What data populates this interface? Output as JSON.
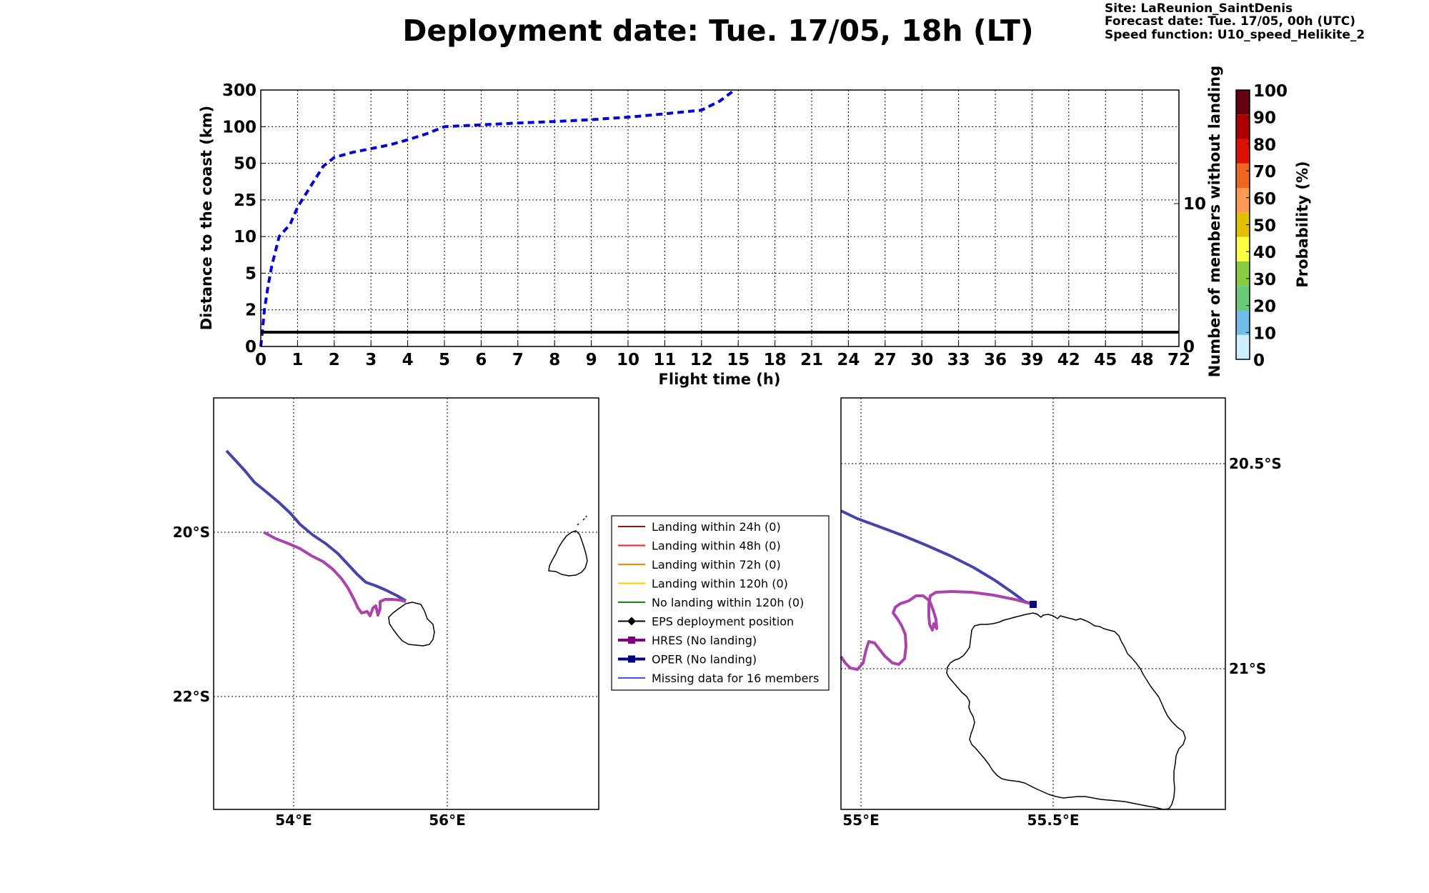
{
  "header": {
    "title": "Deployment date: Tue. 17/05, 18h (LT)",
    "site": "Site: LaReunion_SaintDenis",
    "forecast_date": "Forecast date: Tue. 17/05, 00h (UTC)",
    "speed_function": "Speed function: U10_speed_Helikite_2"
  },
  "chart_data": [
    {
      "type": "line",
      "xlabel": "Flight time (h)",
      "ylabel": "Distance to the coast (km)",
      "ylabel_right": "Number of members without landing",
      "x_ticks": [
        0,
        1,
        2,
        3,
        4,
        5,
        6,
        7,
        8,
        9,
        10,
        11,
        12,
        15,
        18,
        21,
        24,
        27,
        30,
        33,
        36,
        39,
        42,
        45,
        48,
        72
      ],
      "y_ticks": [
        0,
        2,
        5,
        10,
        25,
        50,
        100,
        300
      ],
      "y_right_ticks": [
        0,
        10
      ],
      "x_range": [
        0,
        72
      ],
      "y_range": [
        0,
        300
      ],
      "grid": true,
      "series": [
        {
          "line_style": "dashed",
          "color": "#0000dd",
          "axis": "left",
          "x": [
            0,
            0.05,
            0.1,
            0.2,
            0.3,
            0.5,
            0.8,
            1.0,
            1.3,
            1.7,
            2.0,
            2.5,
            3.0,
            3.5,
            4.0,
            4.5,
            5.0,
            6.0,
            7.0,
            8.0,
            9.0,
            10.0,
            11.0,
            12.0,
            13.5,
            14.7
          ],
          "y": [
            0,
            1,
            2,
            4,
            6,
            10,
            15,
            22,
            32,
            48,
            58,
            65,
            70,
            75,
            82,
            90,
            100,
            110,
            120,
            128,
            138,
            152,
            170,
            190,
            240,
            300
          ]
        },
        {
          "line_style": "solid",
          "color": "#000000",
          "axis": "right",
          "x": [
            0,
            72
          ],
          "y": [
            1,
            1
          ]
        }
      ]
    },
    {
      "type": "map",
      "x_ticks": [
        "54°E",
        "56°E"
      ],
      "y_ticks": [
        "20°S",
        "22°S"
      ]
    },
    {
      "type": "map",
      "x_ticks": [
        "55°E",
        "55.5°E"
      ],
      "y_ticks": [
        "20.5°S",
        "21°S"
      ]
    }
  ],
  "colorbar": {
    "label": "Probability (%)",
    "ticks": [
      "0",
      "10",
      "20",
      "30",
      "40",
      "50",
      "60",
      "70",
      "80",
      "90",
      "100"
    ],
    "colors": [
      "#cceeff",
      "#6fbde8",
      "#66cc77",
      "#88cc44",
      "#ffff44",
      "#e0c000",
      "#ff9955",
      "#ee6622",
      "#dd1100",
      "#aa0000",
      "#660011"
    ]
  },
  "legend": [
    {
      "label": "Landing within 24h (0)",
      "color": "#8b1a1a",
      "marker": "none"
    },
    {
      "label": "Landing within 48h (0)",
      "color": "#ee2222",
      "marker": "none"
    },
    {
      "label": "Landing within 72h (0)",
      "color": "#ff8800",
      "marker": "none"
    },
    {
      "label": "Landing within 120h (0)",
      "color": "#ffcc00",
      "marker": "none"
    },
    {
      "label": "No landing within 120h (0)",
      "color": "#118811",
      "marker": "none"
    },
    {
      "label": "EPS deployment position",
      "color": "#000000",
      "marker": "diamond"
    },
    {
      "label": "HRES (No landing)",
      "color": "#800080",
      "marker": "square"
    },
    {
      "label": "OPER (No landing)",
      "color": "#000080",
      "marker": "square"
    },
    {
      "label": "Missing data for 16 members",
      "color": "#4455ee",
      "marker": "none"
    }
  ],
  "colors": {
    "hres_track": "#aa44aa",
    "oper_track": "#4444aa",
    "oper_marker": "#000080"
  }
}
